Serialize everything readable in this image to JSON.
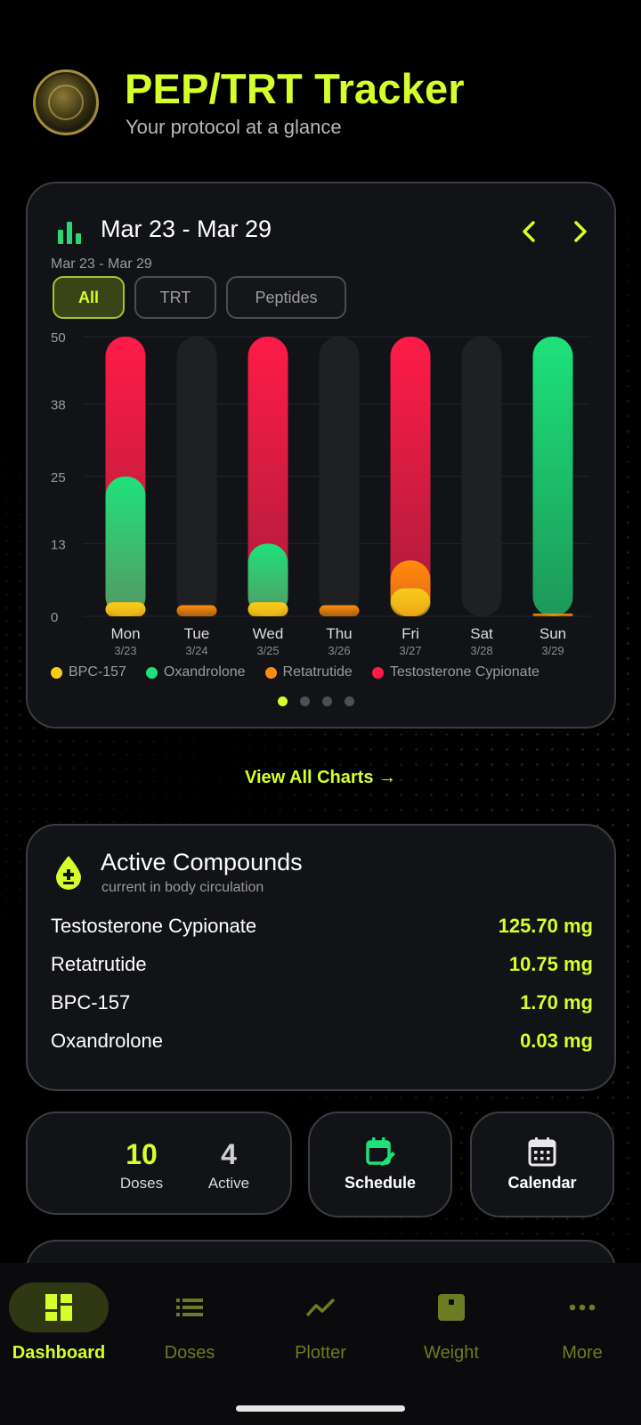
{
  "header": {
    "title": "PEP/TRT Tracker",
    "subtitle": "Your protocol at a glance"
  },
  "chart_card": {
    "range_title": "Mar 23 - Mar 29",
    "range_sub": "Mar 23 - Mar 29",
    "filters": [
      "All",
      "TRT",
      "Peptides"
    ],
    "active_filter": "All",
    "page_dots": 4,
    "active_page": 0
  },
  "chart_data": {
    "type": "bar",
    "stacked": false,
    "categories": [
      "Mon",
      "Tue",
      "Wed",
      "Thu",
      "Fri",
      "Sat",
      "Sun"
    ],
    "category_dates": [
      "3/23",
      "3/24",
      "3/25",
      "3/26",
      "3/27",
      "3/28",
      "3/29"
    ],
    "yticks": [
      "0",
      "13",
      "25",
      "38",
      "50"
    ],
    "ylim": [
      0,
      50
    ],
    "legend_position": "bottom",
    "series": [
      {
        "name": "BPC-157",
        "color": "#f5cc18",
        "values": [
          2.5,
          0,
          2.5,
          0,
          5,
          0,
          0
        ]
      },
      {
        "name": "Oxandrolone",
        "color": "#1de27a",
        "values": [
          25,
          0,
          13,
          0,
          0,
          0,
          50
        ]
      },
      {
        "name": "Retatrutide",
        "color": "#ff8c0a",
        "values": [
          2.5,
          2,
          2.5,
          2,
          10,
          0,
          0.5
        ]
      },
      {
        "name": "Testosterone Cypionate",
        "color": "#ff1b48",
        "values": [
          50,
          0,
          50,
          0,
          50,
          0,
          0
        ]
      }
    ]
  },
  "view_all": "View All Charts →",
  "active_compounds": {
    "title": "Active Compounds",
    "subtitle": "current in body circulation",
    "items": [
      {
        "name": "Testosterone Cypionate",
        "value": "125.70 mg"
      },
      {
        "name": "Retatrutide",
        "value": "10.75 mg"
      },
      {
        "name": "BPC-157",
        "value": "1.70 mg"
      },
      {
        "name": "Oxandrolone",
        "value": "0.03 mg"
      }
    ]
  },
  "stats": {
    "doses_count": "10",
    "doses_label": "Doses",
    "active_count": "4",
    "active_label": "Active"
  },
  "actions": {
    "schedule": "Schedule",
    "calendar": "Calendar"
  },
  "bottom_nav": {
    "items": [
      {
        "label": "Dashboard",
        "icon": "dashboard-icon"
      },
      {
        "label": "Doses",
        "icon": "list-icon"
      },
      {
        "label": "Plotter",
        "icon": "trend-icon"
      },
      {
        "label": "Weight",
        "icon": "scale-icon"
      },
      {
        "label": "More",
        "icon": "more-icon"
      }
    ],
    "active": 0
  },
  "colors": {
    "accent": "#d4ff2a",
    "card_bg": "#121418",
    "card_border": "#3a3d43"
  }
}
